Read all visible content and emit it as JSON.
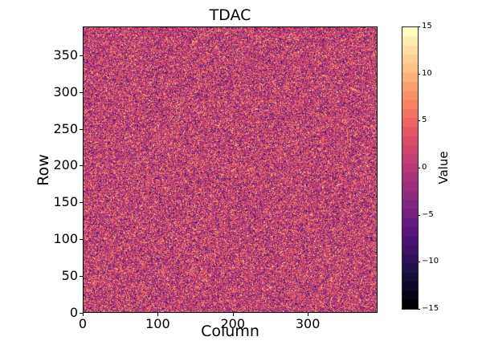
{
  "chart_data": {
    "type": "heatmap",
    "title": "TDAC",
    "xlabel": "Column",
    "ylabel": "Row",
    "x_ticks": [
      0,
      100,
      200,
      300
    ],
    "y_ticks": [
      0,
      50,
      100,
      150,
      200,
      250,
      300,
      350
    ],
    "xlim": [
      0,
      393
    ],
    "ylim": [
      0,
      389
    ],
    "grid": false,
    "legend": "none",
    "colorbar": {
      "label": "Value",
      "vmin": -15,
      "vmax": 15,
      "levels": 31,
      "ticks": [
        {
          "value": 15,
          "label": "15"
        },
        {
          "value": 10,
          "label": "10"
        },
        {
          "value": 5,
          "label": "5"
        },
        {
          "value": 0,
          "label": "0"
        },
        {
          "value": -5,
          "label": "−5"
        },
        {
          "value": -10,
          "label": "−10"
        },
        {
          "value": -15,
          "label": "−15"
        }
      ]
    },
    "colormap": {
      "name": "magma",
      "stops": [
        {
          "t": 0.0,
          "color": "#000004"
        },
        {
          "t": 0.125,
          "color": "#1d1147"
        },
        {
          "t": 0.25,
          "color": "#51127c"
        },
        {
          "t": 0.375,
          "color": "#862781"
        },
        {
          "t": 0.5,
          "color": "#b73779"
        },
        {
          "t": 0.625,
          "color": "#e75263"
        },
        {
          "t": 0.75,
          "color": "#fc8961"
        },
        {
          "t": 0.875,
          "color": "#fec488"
        },
        {
          "t": 1.0,
          "color": "#fcfdbf"
        }
      ]
    },
    "data_pattern": {
      "description": "per-pixel random integer noise spanning the full -15..15 range, centered slightly above 0 (dominant pink/magenta with orange, purple, cream and rare black speckles)",
      "mean": 1,
      "std": 5,
      "value_type": "integer",
      "seed": 1234
    },
    "colors": {
      "background": "#ffffff",
      "spine": "#000000",
      "text": "#000000"
    }
  }
}
